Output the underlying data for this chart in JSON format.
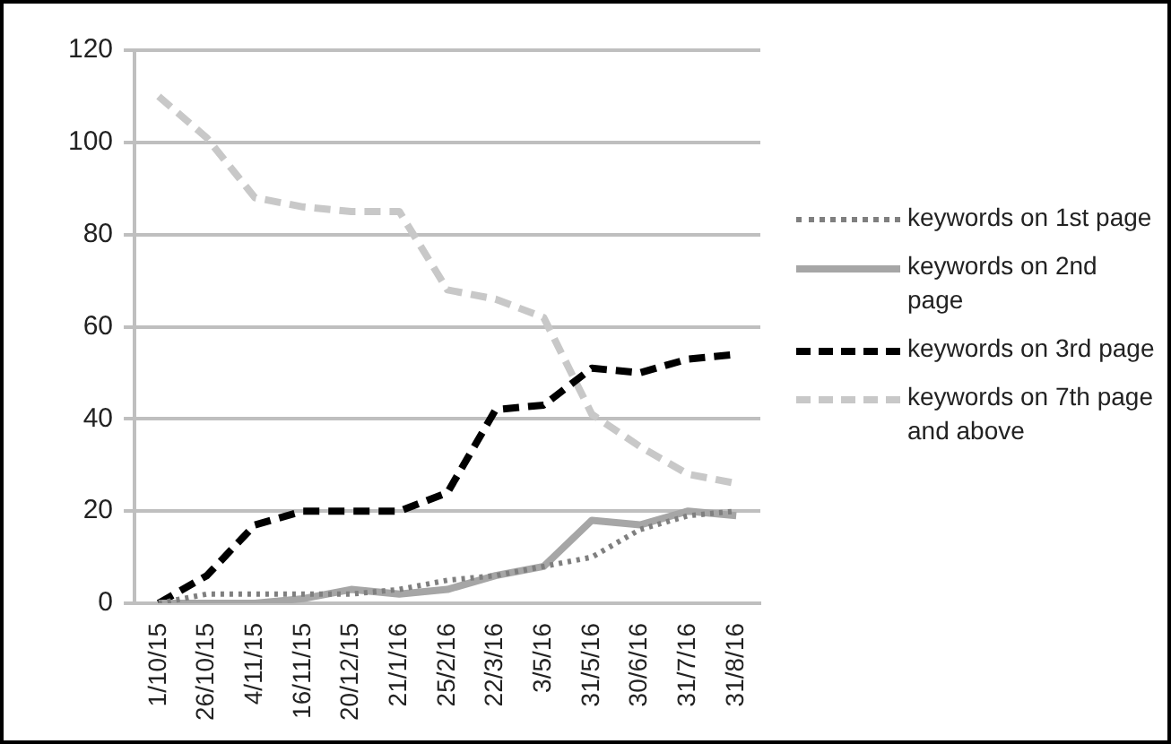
{
  "chart_data": {
    "type": "line",
    "categories": [
      "1/10/15",
      "26/10/15",
      "4/11/15",
      "16/11/15",
      "20/12/15",
      "21/1/16",
      "25/2/16",
      "22/3/16",
      "3/5/16",
      "31/5/16",
      "30/6/16",
      "31/7/16",
      "31/8/16"
    ],
    "series": [
      {
        "name": "keywords on 1st page",
        "color": "#7f7f7f",
        "line_style": "dotted",
        "values": [
          0,
          2,
          2,
          2,
          2,
          3,
          5,
          6,
          8,
          10,
          16,
          19,
          20
        ]
      },
      {
        "name": "keywords on 2nd page",
        "color": "#a6a6a6",
        "line_style": "solid",
        "values": [
          0,
          0,
          0,
          1,
          3,
          2,
          3,
          6,
          8,
          18,
          17,
          20,
          19
        ]
      },
      {
        "name": "keywords on 3rd page",
        "color": "#000000",
        "line_style": "dashed",
        "values": [
          0,
          6,
          17,
          20,
          20,
          20,
          24,
          42,
          43,
          51,
          50,
          53,
          54
        ]
      },
      {
        "name": "keywords on 7th page and above",
        "color": "#c8c8c8",
        "line_style": "dashed",
        "values": [
          110,
          101,
          88,
          86,
          85,
          85,
          68,
          66,
          62,
          41,
          34,
          28,
          26
        ]
      }
    ],
    "ylim": [
      0,
      120
    ],
    "yticks": [
      0,
      20,
      40,
      60,
      80,
      100,
      120
    ],
    "grid": "y",
    "legend": "right",
    "marker": "none"
  }
}
